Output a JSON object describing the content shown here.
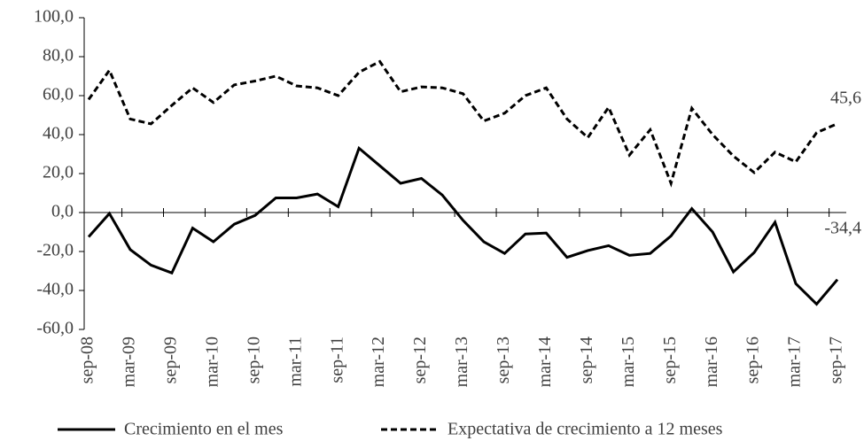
{
  "chart_data": {
    "type": "line",
    "categories": [
      "sep-08",
      null,
      "mar-09",
      null,
      "sep-09",
      null,
      "mar-10",
      null,
      "sep-10",
      null,
      "mar-11",
      null,
      "sep-11",
      null,
      "mar-12",
      null,
      "sep-12",
      null,
      "mar-13",
      null,
      "sep-13",
      null,
      "mar-14",
      null,
      "sep-14",
      null,
      "mar-15",
      null,
      "sep-15",
      null,
      "mar-16",
      null,
      "sep-16",
      null,
      "mar-17",
      null,
      "sep-17"
    ],
    "series": [
      {
        "name": "Crecimiento en el mes",
        "color": "#000000",
        "style": "solid",
        "values": [
          -12.5,
          -0.5,
          -19,
          -27,
          -31,
          -8,
          -15,
          -6,
          -1.5,
          7.5,
          7.5,
          9.5,
          3,
          33,
          24,
          15,
          17.5,
          9,
          -4,
          -15,
          -21,
          -11,
          -10.5,
          -23,
          -19.5,
          -17,
          -22,
          -21,
          -12,
          2,
          -10,
          -30.5,
          -20.5,
          -5,
          -36.5,
          -47,
          -34.4
        ],
        "value_labels": [
          null,
          null,
          null,
          null,
          null,
          null,
          null,
          null,
          null,
          null,
          null,
          null,
          null,
          null,
          null,
          null,
          null,
          null,
          null,
          null,
          null,
          null,
          null,
          null,
          null,
          null,
          null,
          null,
          null,
          null,
          null,
          null,
          null,
          null,
          null,
          null,
          "-34,4"
        ]
      },
      {
        "name": "Expectativa de crecimiento a 12 meses",
        "color": "#000000",
        "style": "dashed",
        "values": [
          58,
          73,
          48,
          45.5,
          55,
          64,
          56.5,
          65.5,
          67.5,
          70,
          65,
          64,
          60,
          72,
          77.5,
          62,
          64.5,
          64,
          61,
          47,
          51,
          60,
          64,
          48,
          38.5,
          54,
          29.5,
          42.5,
          15,
          53.5,
          40,
          29,
          20.5,
          31,
          26,
          41,
          45.6
        ],
        "value_labels": [
          null,
          null,
          null,
          null,
          null,
          null,
          null,
          null,
          null,
          null,
          null,
          null,
          null,
          null,
          null,
          null,
          null,
          null,
          null,
          null,
          null,
          null,
          null,
          null,
          null,
          null,
          null,
          null,
          null,
          null,
          null,
          null,
          null,
          null,
          null,
          null,
          "45,6"
        ]
      }
    ],
    "ylim": [
      -60,
      100
    ],
    "yticks": [
      {
        "value": -60,
        "label": "-60,0"
      },
      {
        "value": -40,
        "label": "-40,0"
      },
      {
        "value": -20,
        "label": "-20,0"
      },
      {
        "value": 0,
        "label": "0,0"
      },
      {
        "value": 20,
        "label": "20,0"
      },
      {
        "value": 40,
        "label": "40,0"
      },
      {
        "value": 60,
        "label": "60,0"
      },
      {
        "value": 80,
        "label": "80,0"
      },
      {
        "value": 100,
        "label": "100,0"
      }
    ],
    "grid": false,
    "legend": "bottom"
  }
}
